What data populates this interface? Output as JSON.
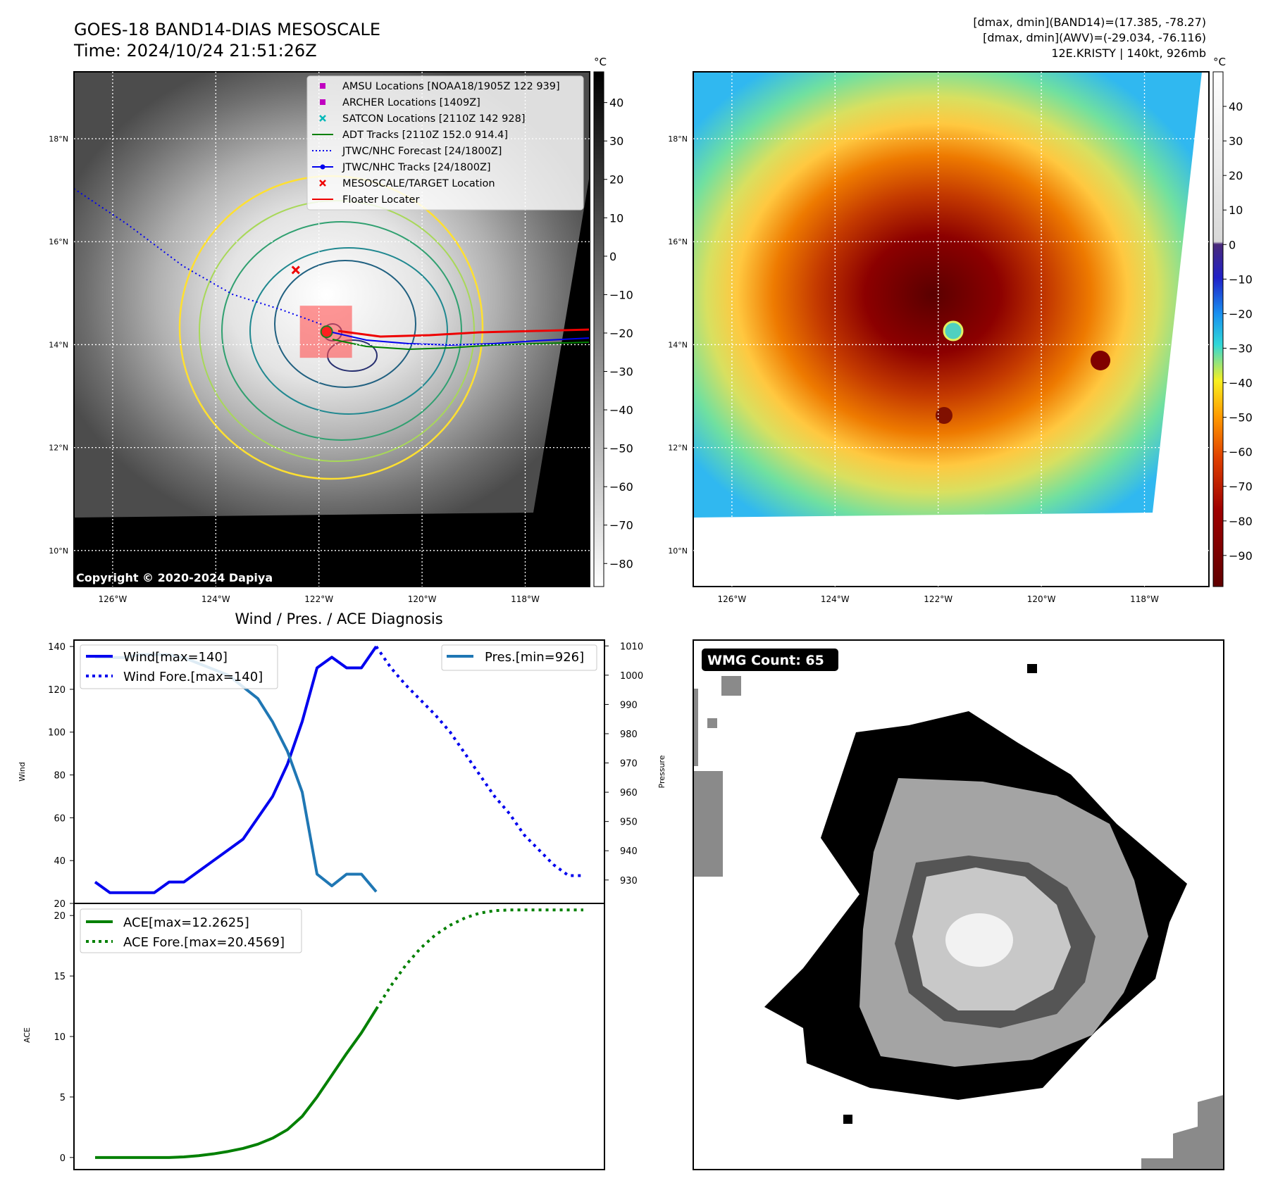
{
  "header": {
    "title": "GOES-18 BAND14-DIAS MESOSCALE",
    "time": "Time: 2024/10/24 21:51:26Z",
    "dmax_band14": "[dmax, dmin](BAND14)=(17.385, -78.27)",
    "dmax_awv": "[dmax, dmin](AWV)=(-29.034, -76.116)",
    "storm": "12E.KRISTY | 140kt, 926mb"
  },
  "maps": {
    "lat_labels": [
      "18°N",
      "16°N",
      "14°N",
      "12°N",
      "10°N"
    ],
    "lat_values": [
      18,
      16,
      14,
      12,
      10
    ],
    "lon_labels": [
      "126°W",
      "124°W",
      "122°W",
      "120°W",
      "118°W"
    ],
    "lon_values": [
      -126,
      -124,
      -122,
      -120,
      -118
    ],
    "extent": {
      "lon": [
        -126.75,
        -116.75
      ],
      "lat": [
        9.3,
        19.3
      ]
    },
    "copyright": "Copyright © 2020-2024 Dapiya",
    "colorbar_unit": "°C",
    "left_colorbar_ticks": [
      "40",
      "30",
      "20",
      "10",
      "0",
      "−10",
      "−20",
      "−30",
      "−40",
      "−50",
      "−60",
      "−70",
      "−80"
    ],
    "left_colorbar_values": [
      40,
      30,
      20,
      10,
      0,
      -10,
      -20,
      -30,
      -40,
      -50,
      -60,
      -70,
      -80
    ],
    "left_colorbar_range": [
      48,
      -86
    ],
    "right_colorbar_ticks": [
      "40",
      "30",
      "20",
      "10",
      "0",
      "−10",
      "−20",
      "−30",
      "−40",
      "−50",
      "−60",
      "−70",
      "−80",
      "−90"
    ],
    "right_colorbar_values": [
      40,
      30,
      20,
      10,
      0,
      -10,
      -20,
      -30,
      -40,
      -50,
      -60,
      -70,
      -80,
      -90
    ],
    "right_colorbar_range": [
      50,
      -99
    ],
    "storm_center": {
      "lon": -121.85,
      "lat": 14.25
    },
    "target_location": {
      "lon": -122.45,
      "lat": 15.45
    },
    "legend": [
      {
        "label": "AMSU Locations [NOAA18/1905Z 122 939]",
        "kind": "square",
        "color": "#c000c0"
      },
      {
        "label": "ARCHER Locations [1409Z]",
        "kind": "square",
        "color": "#c000c0"
      },
      {
        "label": "SATCON Locations [2110Z 142 928]",
        "kind": "x",
        "color": "#00b8b8"
      },
      {
        "label": "ADT Tracks [2110Z 152.0 914.4]",
        "kind": "line",
        "color": "#008000"
      },
      {
        "label": "JTWC/NHC Forecast [24/1800Z]",
        "kind": "dotted",
        "color": "#0000ee"
      },
      {
        "label": "JTWC/NHC Tracks [24/1800Z]",
        "kind": "linedot",
        "color": "#0000ee"
      },
      {
        "label": "MESOSCALE/TARGET Location",
        "kind": "x",
        "color": "#ee0000"
      },
      {
        "label": "Floater Locater",
        "kind": "line",
        "color": "#ee0000"
      }
    ]
  },
  "chart_data": [
    {
      "type": "line",
      "title": "Wind / Pres. / ACE Diagnosis",
      "ylabel": "Wind",
      "y2label": "Pressure",
      "ylim": [
        20,
        143
      ],
      "y2lim": [
        922,
        1012
      ],
      "yticks": [
        20,
        40,
        60,
        80,
        100,
        120,
        140
      ],
      "y2ticks": [
        930,
        940,
        950,
        960,
        970,
        980,
        990,
        1000,
        1010
      ],
      "grid": false,
      "series": [
        {
          "name": "Wind[max=140]",
          "axis": "left",
          "style": "solid",
          "color": "#0000ee",
          "x": [
            0,
            1,
            2,
            3,
            4,
            5,
            6,
            7,
            8,
            9,
            10,
            11,
            12,
            13,
            14,
            15,
            16,
            17,
            18,
            19
          ],
          "values": [
            30,
            25,
            25,
            25,
            25,
            30,
            30,
            35,
            40,
            45,
            50,
            60,
            70,
            85,
            105,
            130,
            135,
            130,
            130,
            140
          ]
        },
        {
          "name": "Wind Fore.[max=140]",
          "axis": "left",
          "style": "dotted",
          "color": "#0000ee",
          "x": [
            19,
            20,
            21,
            22,
            23,
            24,
            25,
            26,
            27,
            28,
            29,
            30,
            31,
            32,
            33
          ],
          "values": [
            140,
            130,
            122,
            115,
            108,
            100,
            90,
            80,
            70,
            62,
            52,
            45,
            38,
            33,
            33
          ]
        },
        {
          "name": "Pres.[min=926]",
          "axis": "right",
          "style": "solid",
          "color": "#1f77b4",
          "x": [
            0,
            1,
            2,
            3,
            4,
            5,
            6,
            7,
            8,
            9,
            10,
            11,
            12,
            13,
            14,
            15,
            16,
            17,
            18,
            19
          ],
          "values": [
            1006,
            1006,
            1006,
            1007,
            1007,
            1007,
            1006,
            1004,
            1002,
            1000,
            996,
            992,
            984,
            974,
            960,
            932,
            928,
            932,
            932,
            926
          ]
        }
      ]
    },
    {
      "type": "line",
      "ylabel": "ACE",
      "ylim": [
        -1,
        21
      ],
      "yticks": [
        0,
        5,
        10,
        15,
        20
      ],
      "grid": false,
      "series": [
        {
          "name": "ACE[max=12.2625]",
          "style": "solid",
          "color": "#008000",
          "x": [
            0,
            1,
            2,
            3,
            4,
            5,
            6,
            7,
            8,
            9,
            10,
            11,
            12,
            13,
            14,
            15,
            16,
            17,
            18,
            19
          ],
          "values": [
            0,
            0,
            0,
            0,
            0,
            0,
            0.05,
            0.15,
            0.3,
            0.5,
            0.75,
            1.1,
            1.6,
            2.3,
            3.4,
            5.0,
            6.8,
            8.6,
            10.3,
            12.26
          ]
        },
        {
          "name": "ACE Fore.[max=20.4569]",
          "style": "dotted",
          "color": "#008000",
          "x": [
            19,
            20,
            21,
            22,
            23,
            24,
            25,
            26,
            27,
            28,
            29,
            30,
            31,
            32,
            33
          ],
          "values": [
            12.26,
            14.2,
            15.9,
            17.3,
            18.4,
            19.2,
            19.8,
            20.2,
            20.4,
            20.46,
            20.46,
            20.46,
            20.46,
            20.46,
            20.46
          ]
        }
      ]
    },
    {
      "type": "heatmap",
      "label": "WMG Count: 65"
    }
  ]
}
